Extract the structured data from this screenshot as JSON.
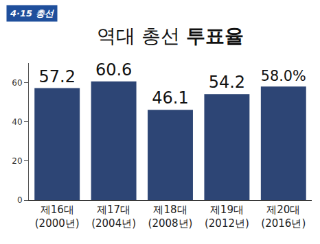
{
  "chart_data": {
    "type": "bar",
    "badge": "4·15 총선",
    "title": "역대 총선 투표율",
    "categories": [
      "제16대 (2000년)",
      "제17대 (2004년)",
      "제18대 (2008년)",
      "제19대 (2012년)",
      "제20대 (2016년)"
    ],
    "values": [
      57.2,
      60.6,
      46.1,
      54.2,
      58.0
    ],
    "value_labels": [
      "57.2",
      "60.6",
      "46.1",
      "54.2",
      "58.0%"
    ],
    "color": "#2d4575",
    "ylim": [
      0,
      70
    ],
    "yticks": [
      0,
      20,
      40,
      60
    ],
    "grid": false,
    "data_labels": true
  }
}
